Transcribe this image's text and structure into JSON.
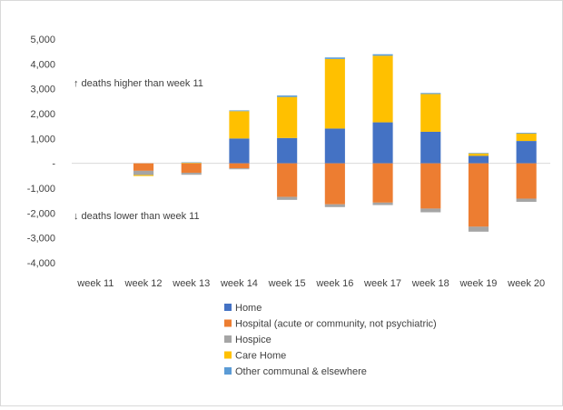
{
  "chart_data": {
    "type": "bar",
    "stacked": true,
    "categories": [
      "week 11",
      "week 12",
      "week 13",
      "week 14",
      "week 15",
      "week 16",
      "week 17",
      "week 18",
      "week 19",
      "week 20"
    ],
    "ylim": [
      -4000,
      5000
    ],
    "ytick_labels": [
      "5,000",
      "4,000",
      "3,000",
      "2,000",
      "1,000",
      "-",
      "-1,000",
      "-2,000",
      "-3,000",
      "-4,000"
    ],
    "grid": false,
    "legend_position": "bottom",
    "annotations": {
      "above": "↑ deaths higher than week 11",
      "below": "↓ deaths lower than week 11"
    },
    "series": [
      {
        "name": "Home",
        "color": "#4472C4",
        "values": [
          0,
          0,
          0,
          1000,
          1020,
          1400,
          1650,
          1270,
          300,
          900
        ]
      },
      {
        "name": "Hospital (acute or community, not psychiatric)",
        "color": "#ED7D31",
        "values": [
          0,
          -300,
          -380,
          -200,
          -1350,
          -1650,
          -1580,
          -1820,
          -2550,
          -1420
        ]
      },
      {
        "name": "Hospice",
        "color": "#A5A5A5",
        "values": [
          0,
          -170,
          -80,
          -40,
          -120,
          -110,
          -100,
          -150,
          -200,
          -130
        ]
      },
      {
        "name": "Care Home",
        "color": "#FFC000",
        "values": [
          0,
          -40,
          20,
          1100,
          1650,
          2800,
          2680,
          1520,
          100,
          300
        ]
      },
      {
        "name": "Other communal & elsewhere",
        "color": "#5B9BD5",
        "values": [
          0,
          0,
          20,
          30,
          60,
          60,
          60,
          40,
          20,
          30
        ]
      }
    ]
  }
}
